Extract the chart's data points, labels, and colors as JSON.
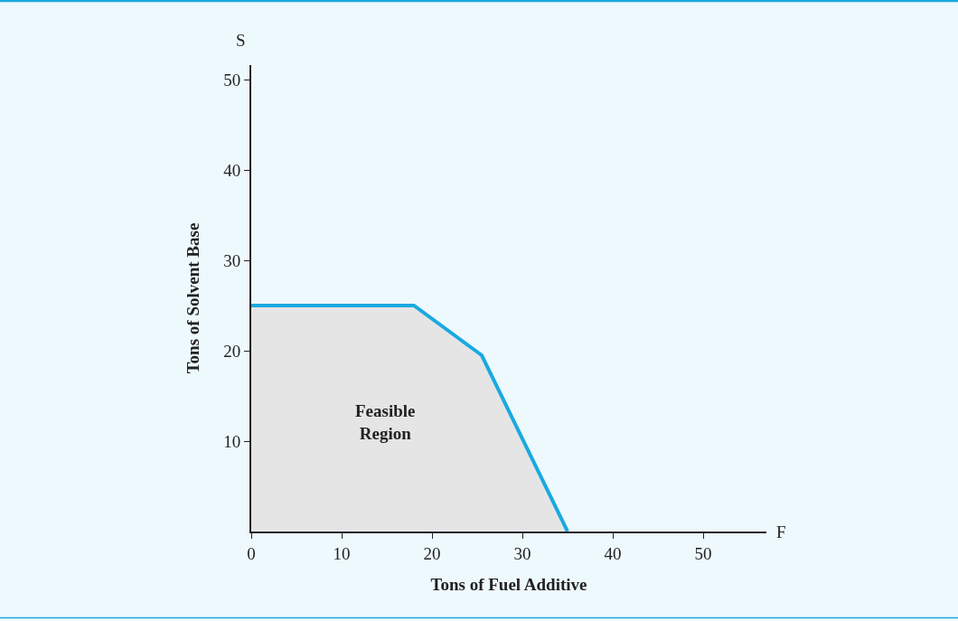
{
  "chart_data": {
    "type": "area",
    "xlabel": "Tons of Fuel Additive",
    "ylabel": "Tons of Solvent Base",
    "x": [
      0,
      18,
      25.5,
      35
    ],
    "series": [
      {
        "color": "#1aa9e0",
        "values": [
          25,
          25,
          19.5,
          0
        ]
      }
    ],
    "xlim": [
      0,
      57
    ],
    "ylim": [
      0,
      51.6
    ],
    "xticks": [
      0,
      10,
      20,
      30,
      40,
      50
    ],
    "yticks": [
      10,
      20,
      30,
      40,
      50
    ],
    "grid": false,
    "annotations": [
      "Feasible\nRegion",
      "F",
      "S"
    ]
  }
}
